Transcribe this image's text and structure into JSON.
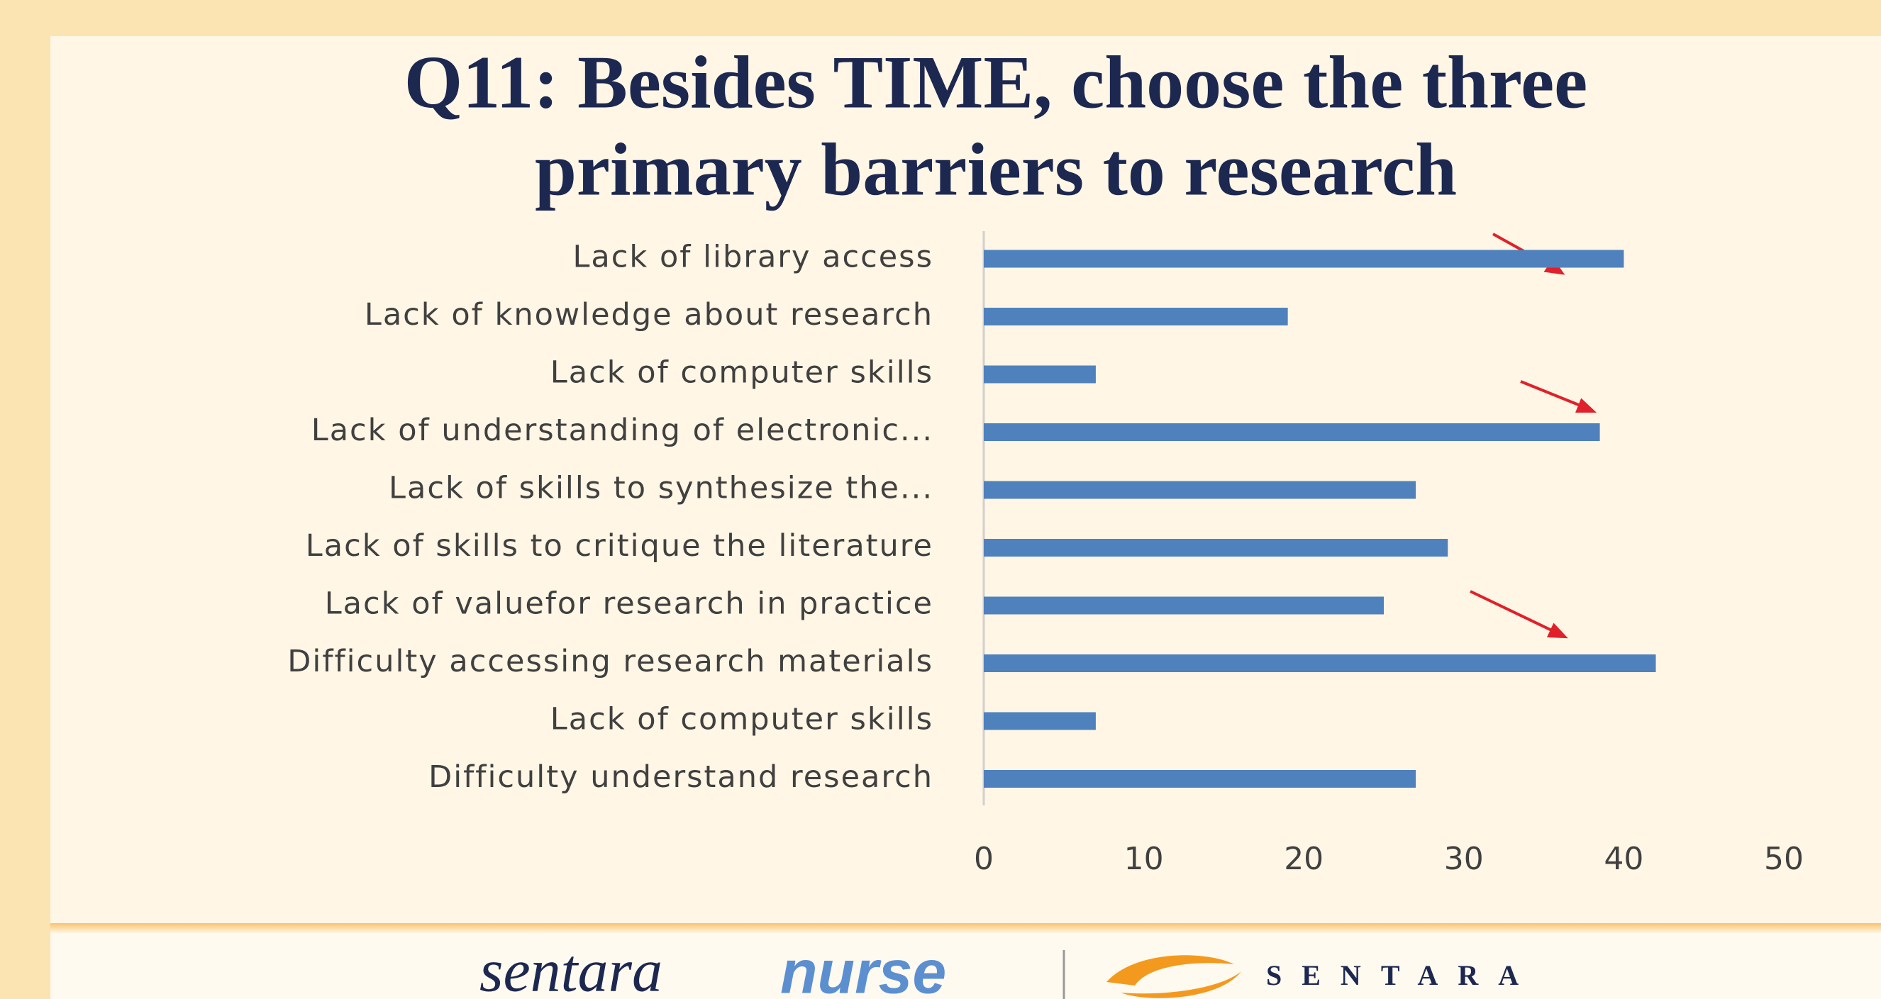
{
  "chart_data": {
    "type": "bar",
    "title": [
      "Q11: Besides TIME, choose the three",
      "primary barriers to research"
    ],
    "categories": [
      "Lack of library access",
      "Lack of knowledge about research",
      "Lack of computer skills",
      "Lack of understanding of electronic...",
      "Lack of skills to synthesize the...",
      "Lack of skills to critique the literature",
      "Lack of valuefor research in practice",
      "Difficulty accessing research materials",
      "Lack of computer skills",
      "Difficulty understand research"
    ],
    "values": [
      40,
      19,
      7,
      38.5,
      27,
      29,
      25,
      42,
      7,
      27
    ],
    "color": "#4f81bd",
    "xlim": [
      0,
      50
    ],
    "xticks": [
      0,
      10,
      20,
      30,
      40,
      50
    ],
    "grid": false
  },
  "footer": {
    "brand": "sentara",
    "brand_accent": "nurse",
    "logo_text": "SENTARA"
  }
}
